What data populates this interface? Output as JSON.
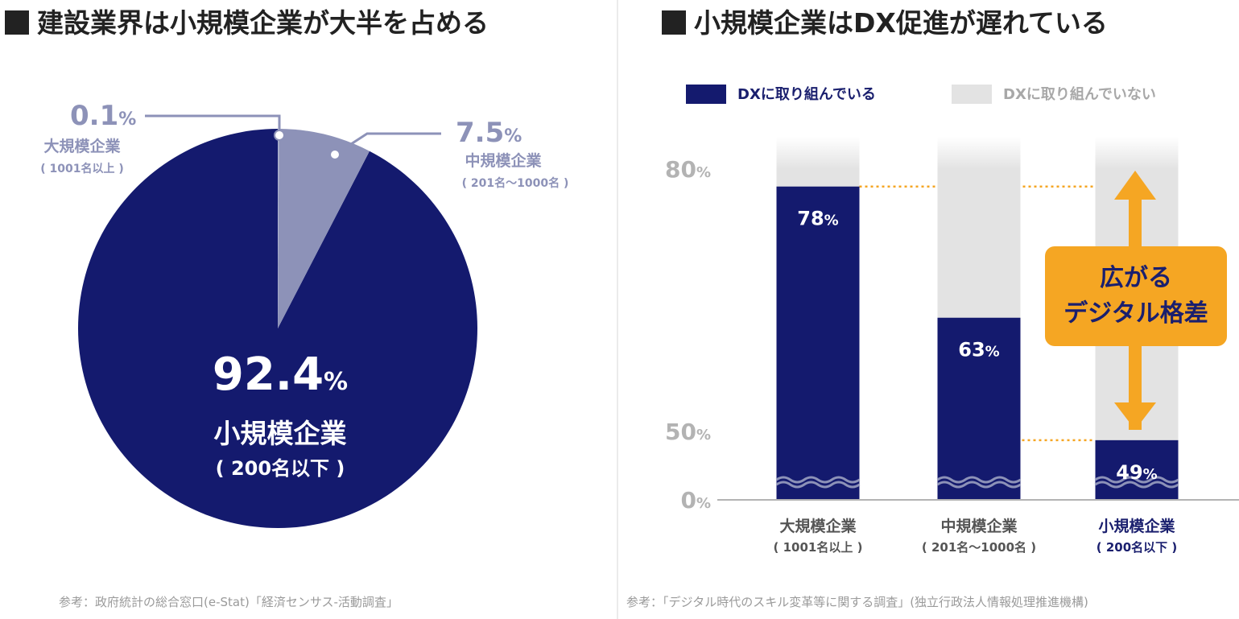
{
  "left": {
    "heading": "建設業界は小規模企業が大半を占める",
    "source": "参考：政府統計の総合窓口(e-Stat)「経済センサス-活動調査」"
  },
  "right": {
    "heading": "小規模企業はDX促進が遅れている",
    "source": "参考：「デジタル時代のスキル変革等に関する調査」(独立行政法人情報処理推進機構)",
    "callout": {
      "line1": "広がる",
      "line2": "デジタル格差"
    }
  },
  "colors": {
    "navy": "#141a6e",
    "mid": "#8d92b8",
    "light_gray": "#e3e3e3",
    "orange": "#f5a623",
    "axis_gray": "#b3b3b3"
  },
  "chart_data": [
    {
      "type": "pie",
      "title": "建設業界は小規模企業が大半を占める",
      "slices": [
        {
          "name": "小規模企業",
          "sub": "( 200名以下 )",
          "value": 92.4,
          "label": "92.4",
          "unit": "%",
          "color": "#141a6e"
        },
        {
          "name": "中規模企業",
          "sub": "( 201名～1000名 )",
          "value": 7.5,
          "label": "7.5",
          "unit": "%",
          "color": "#8d92b8"
        },
        {
          "name": "大規模企業",
          "sub": "( 1001名以上 )",
          "value": 0.1,
          "label": "0.1",
          "unit": "%",
          "color": "#aab0cc"
        }
      ]
    },
    {
      "type": "bar",
      "title": "小規模企業はDX促進が遅れている",
      "categories": [
        "大規模企業",
        "中規模企業",
        "小規模企業"
      ],
      "category_subs": [
        "( 1001名以上 )",
        "( 201名～1000名 )",
        "( 200名以下 )"
      ],
      "series": [
        {
          "name": "DXに取り組んでいる",
          "values": [
            78,
            63,
            49
          ],
          "labels": [
            "78",
            "63",
            "49"
          ]
        },
        {
          "name": "DXに取り組んでいない",
          "values": [
            22,
            37,
            51
          ]
        }
      ],
      "unit": "%",
      "y_ticks": [
        {
          "label": "80",
          "value": 80
        },
        {
          "label": "50",
          "value": 50
        },
        {
          "label": "0",
          "value": 0
        }
      ],
      "axis_break": true,
      "reference_lines": [
        78,
        49
      ]
    }
  ]
}
